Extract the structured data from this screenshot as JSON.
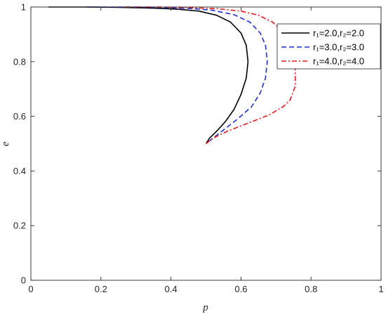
{
  "chart_data": {
    "type": "line",
    "title": "",
    "xlabel": "p",
    "ylabel": "e",
    "xlim": [
      0,
      1
    ],
    "ylim": [
      0,
      1
    ],
    "xticks": [
      "0",
      "0.2",
      "0.4",
      "0.6",
      "0.8",
      "1"
    ],
    "yticks": [
      "0",
      "0.2",
      "0.4",
      "0.6",
      "0.8",
      "1"
    ],
    "grid": false,
    "legend_position": "top-right",
    "series": [
      {
        "name": "r₁=2.0,r₂=2.0",
        "color": "#000000",
        "dash": "solid",
        "x": [
          0.05,
          0.15,
          0.25,
          0.35,
          0.42,
          0.48,
          0.53,
          0.57,
          0.6,
          0.615,
          0.62,
          0.615,
          0.6,
          0.58,
          0.555,
          0.53,
          0.51,
          0.5
        ],
        "y": [
          1.0,
          1.0,
          0.999,
          0.996,
          0.992,
          0.985,
          0.97,
          0.945,
          0.905,
          0.86,
          0.8,
          0.74,
          0.68,
          0.625,
          0.58,
          0.545,
          0.52,
          0.5
        ]
      },
      {
        "name": "r₁=3.0,r₂=3.0",
        "color": "#1f2fd6",
        "dash": "dashed",
        "x": [
          0.16,
          0.25,
          0.35,
          0.45,
          0.52,
          0.58,
          0.625,
          0.655,
          0.67,
          0.675,
          0.67,
          0.655,
          0.63,
          0.59,
          0.55,
          0.52,
          0.5
        ],
        "y": [
          1.0,
          1.0,
          0.999,
          0.995,
          0.988,
          0.972,
          0.945,
          0.905,
          0.86,
          0.8,
          0.74,
          0.685,
          0.635,
          0.59,
          0.55,
          0.52,
          0.5
        ]
      },
      {
        "name": "r₁=4.0,r₂=4.0",
        "color": "#e8191d",
        "dash": "dashdot",
        "x": [
          0.27,
          0.35,
          0.45,
          0.53,
          0.6,
          0.65,
          0.69,
          0.72,
          0.74,
          0.75,
          0.755,
          0.755,
          0.74,
          0.72,
          0.68,
          0.62,
          0.56,
          0.52,
          0.5
        ],
        "y": [
          1.0,
          1.0,
          0.998,
          0.994,
          0.985,
          0.97,
          0.945,
          0.91,
          0.87,
          0.82,
          0.77,
          0.71,
          0.66,
          0.635,
          0.605,
          0.575,
          0.545,
          0.52,
          0.5
        ]
      }
    ]
  }
}
